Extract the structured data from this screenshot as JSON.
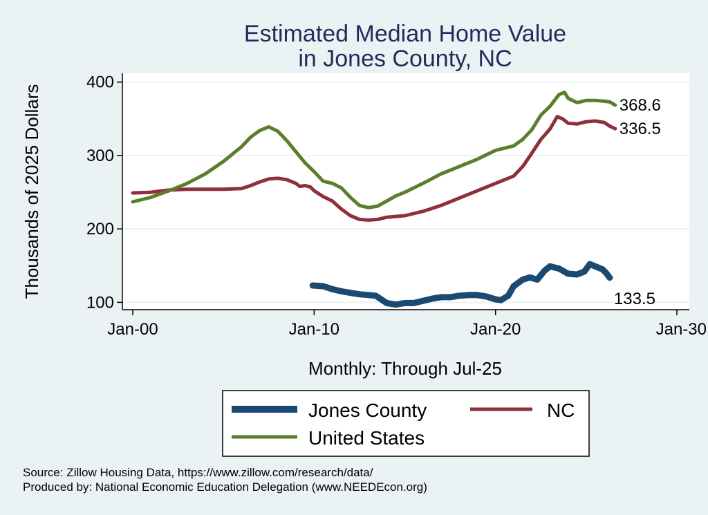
{
  "chart_data": {
    "type": "line",
    "title_lines": [
      "Estimated Median Home Value",
      "in Jones County, NC"
    ],
    "xlabel": "Monthly: Through Jul-25",
    "ylabel": "Thousands of 2025 Dollars",
    "xlim": [
      2000,
      2030
    ],
    "ylim": [
      90,
      412
    ],
    "x_ticks": [
      {
        "value": 2000,
        "label": "Jan-00"
      },
      {
        "value": 2010,
        "label": "Jan-10"
      },
      {
        "value": 2020,
        "label": "Jan-20"
      },
      {
        "value": 2030,
        "label": "Jan-30"
      }
    ],
    "y_ticks": [
      100,
      200,
      300,
      400
    ],
    "grid": true,
    "legend_position": "bottom",
    "series": [
      {
        "name": "Jones County",
        "color": "#1a4a72",
        "end_label": "133.5",
        "points": [
          [
            2009.92,
            123
          ],
          [
            2010.5,
            122
          ],
          [
            2011.0,
            118
          ],
          [
            2011.5,
            115
          ],
          [
            2012.0,
            113
          ],
          [
            2012.5,
            111
          ],
          [
            2013.0,
            110
          ],
          [
            2013.4,
            109
          ],
          [
            2013.7,
            104
          ],
          [
            2014.0,
            99
          ],
          [
            2014.5,
            97
          ],
          [
            2015.0,
            99
          ],
          [
            2015.5,
            99
          ],
          [
            2016.0,
            102
          ],
          [
            2016.5,
            105
          ],
          [
            2017.0,
            107
          ],
          [
            2017.5,
            107
          ],
          [
            2018.0,
            109
          ],
          [
            2018.5,
            110
          ],
          [
            2019.0,
            110
          ],
          [
            2019.5,
            108
          ],
          [
            2020.0,
            104
          ],
          [
            2020.3,
            103
          ],
          [
            2020.7,
            109
          ],
          [
            2021.0,
            122
          ],
          [
            2021.5,
            131
          ],
          [
            2021.9,
            134
          ],
          [
            2022.3,
            131
          ],
          [
            2022.7,
            143
          ],
          [
            2023.0,
            149
          ],
          [
            2023.5,
            146
          ],
          [
            2024.0,
            139
          ],
          [
            2024.5,
            138
          ],
          [
            2024.9,
            142
          ],
          [
            2025.2,
            152
          ],
          [
            2025.5,
            149
          ],
          [
            2025.9,
            145
          ],
          [
            2026.1,
            140
          ],
          [
            2026.3,
            133.5
          ]
        ]
      },
      {
        "name": "NC",
        "color": "#8e2f3a",
        "end_label": "336.5",
        "points": [
          [
            2000.0,
            249
          ],
          [
            2001.0,
            250
          ],
          [
            2002.0,
            253
          ],
          [
            2003.0,
            254
          ],
          [
            2004.0,
            254
          ],
          [
            2005.0,
            254
          ],
          [
            2006.0,
            255
          ],
          [
            2006.5,
            259
          ],
          [
            2007.0,
            264
          ],
          [
            2007.5,
            268
          ],
          [
            2008.0,
            269
          ],
          [
            2008.5,
            267
          ],
          [
            2009.0,
            262
          ],
          [
            2009.2,
            258
          ],
          [
            2009.5,
            259
          ],
          [
            2009.8,
            257
          ],
          [
            2010.0,
            252
          ],
          [
            2010.5,
            244
          ],
          [
            2011.0,
            238
          ],
          [
            2011.5,
            227
          ],
          [
            2012.0,
            218
          ],
          [
            2012.5,
            213
          ],
          [
            2013.0,
            212
          ],
          [
            2013.5,
            213
          ],
          [
            2014.0,
            216
          ],
          [
            2015.0,
            218
          ],
          [
            2016.0,
            224
          ],
          [
            2017.0,
            232
          ],
          [
            2018.0,
            242
          ],
          [
            2019.0,
            252
          ],
          [
            2020.0,
            262
          ],
          [
            2021.0,
            272
          ],
          [
            2021.5,
            285
          ],
          [
            2022.0,
            303
          ],
          [
            2022.5,
            322
          ],
          [
            2023.0,
            336
          ],
          [
            2023.4,
            353
          ],
          [
            2023.7,
            350
          ],
          [
            2024.0,
            344
          ],
          [
            2024.5,
            343
          ],
          [
            2025.0,
            346
          ],
          [
            2025.5,
            347
          ],
          [
            2026.0,
            345
          ],
          [
            2026.3,
            340
          ],
          [
            2026.6,
            336.5
          ]
        ]
      },
      {
        "name": "United States",
        "color": "#5a7f2a",
        "end_label": "368.6",
        "points": [
          [
            2000.0,
            237
          ],
          [
            2001.0,
            243
          ],
          [
            2002.0,
            252
          ],
          [
            2003.0,
            262
          ],
          [
            2004.0,
            275
          ],
          [
            2005.0,
            292
          ],
          [
            2006.0,
            312
          ],
          [
            2006.5,
            325
          ],
          [
            2007.0,
            334
          ],
          [
            2007.5,
            339
          ],
          [
            2008.0,
            333
          ],
          [
            2008.5,
            320
          ],
          [
            2009.0,
            305
          ],
          [
            2009.5,
            290
          ],
          [
            2010.0,
            278
          ],
          [
            2010.5,
            265
          ],
          [
            2011.0,
            262
          ],
          [
            2011.5,
            256
          ],
          [
            2012.0,
            243
          ],
          [
            2012.5,
            232
          ],
          [
            2013.0,
            229
          ],
          [
            2013.5,
            231
          ],
          [
            2014.0,
            238
          ],
          [
            2014.5,
            245
          ],
          [
            2015.0,
            250
          ],
          [
            2016.0,
            262
          ],
          [
            2017.0,
            275
          ],
          [
            2018.0,
            285
          ],
          [
            2019.0,
            295
          ],
          [
            2020.0,
            307
          ],
          [
            2021.0,
            313
          ],
          [
            2021.5,
            322
          ],
          [
            2022.0,
            335
          ],
          [
            2022.5,
            355
          ],
          [
            2023.0,
            367
          ],
          [
            2023.5,
            383
          ],
          [
            2023.8,
            386
          ],
          [
            2024.0,
            378
          ],
          [
            2024.5,
            372
          ],
          [
            2025.0,
            375
          ],
          [
            2025.5,
            375
          ],
          [
            2026.0,
            374
          ],
          [
            2026.3,
            373
          ],
          [
            2026.6,
            368.6
          ]
        ]
      }
    ]
  },
  "legend": {
    "items": [
      "Jones County",
      "NC",
      "United States"
    ]
  },
  "footer": {
    "source": "Source: Zillow Housing Data, https://www.zillow.com/research/data/",
    "produced_by": "Produced by: National Economic Education Delegation (www.NEEDEcon.org)"
  }
}
